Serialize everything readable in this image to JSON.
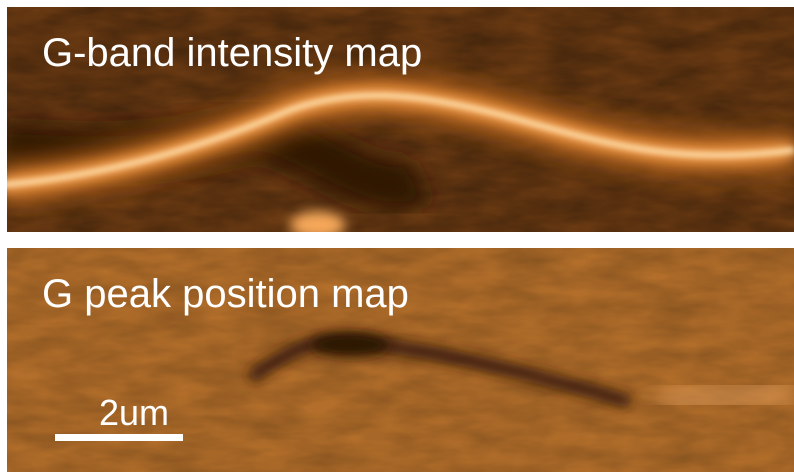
{
  "panels": [
    {
      "label": "G-band intensity map"
    },
    {
      "label": "G peak position map"
    }
  ],
  "scale_bar": {
    "label": "2um"
  }
}
